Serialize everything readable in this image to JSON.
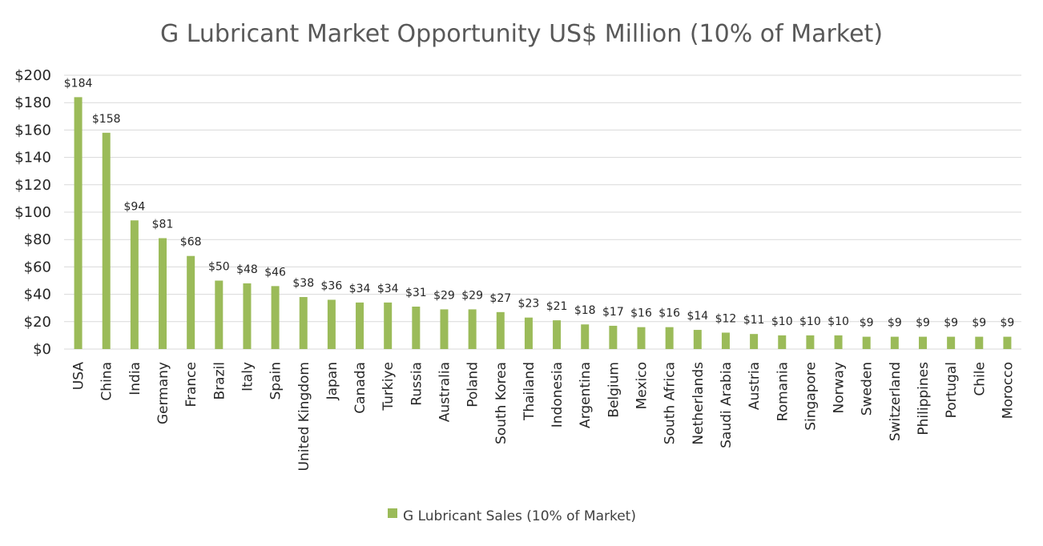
{
  "chart_data": {
    "type": "bar",
    "title": "G Lubricant Market Opportunity US$ Million (10% of Market)",
    "xlabel": "",
    "ylabel": "",
    "ylim": [
      0,
      200
    ],
    "yticks": [
      0,
      20,
      40,
      60,
      80,
      100,
      120,
      140,
      160,
      180,
      200
    ],
    "ytick_labels": [
      "$0",
      "$20",
      "$40",
      "$60",
      "$80",
      "$100",
      "$120",
      "$140",
      "$160",
      "$180",
      "$200"
    ],
    "grid": true,
    "legend_position": "bottom",
    "bar_color": "#9bbb59",
    "categories": [
      "USA",
      "China",
      "India",
      "Germany",
      "France",
      "Brazil",
      "Italy",
      "Spain",
      "United Kingdom",
      "Japan",
      "Canada",
      "Turkiye",
      "Russia",
      "Australia",
      "Poland",
      "South Korea",
      "Thailand",
      "Indonesia",
      "Argentina",
      "Belgium",
      "Mexico",
      "South Africa",
      "Netherlands",
      "Saudi Arabia",
      "Austria",
      "Romania",
      "Singapore",
      "Norway",
      "Sweden",
      "Switzerland",
      "Philippines",
      "Portugal",
      "Chile",
      "Morocco"
    ],
    "series": [
      {
        "name": "G Lubricant Sales (10% of Market)",
        "values": [
          184,
          158,
          94,
          81,
          68,
          50,
          48,
          46,
          38,
          36,
          34,
          34,
          31,
          29,
          29,
          27,
          23,
          21,
          18,
          17,
          16,
          16,
          14,
          12,
          11,
          10,
          10,
          10,
          9,
          9,
          9,
          9,
          9,
          9
        ],
        "data_labels": [
          "$184",
          "$158",
          "$94",
          "$81",
          "$68",
          "$50",
          "$48",
          "$46",
          "$38",
          "$36",
          "$34",
          "$34",
          "$31",
          "$29",
          "$29",
          "$27",
          "$23",
          "$21",
          "$18",
          "$17",
          "$16",
          "$16",
          "$14",
          "$12",
          "$11",
          "$10",
          "$10",
          "$10",
          "$9",
          "$9",
          "$9",
          "$9",
          "$9",
          "$9"
        ]
      }
    ]
  }
}
